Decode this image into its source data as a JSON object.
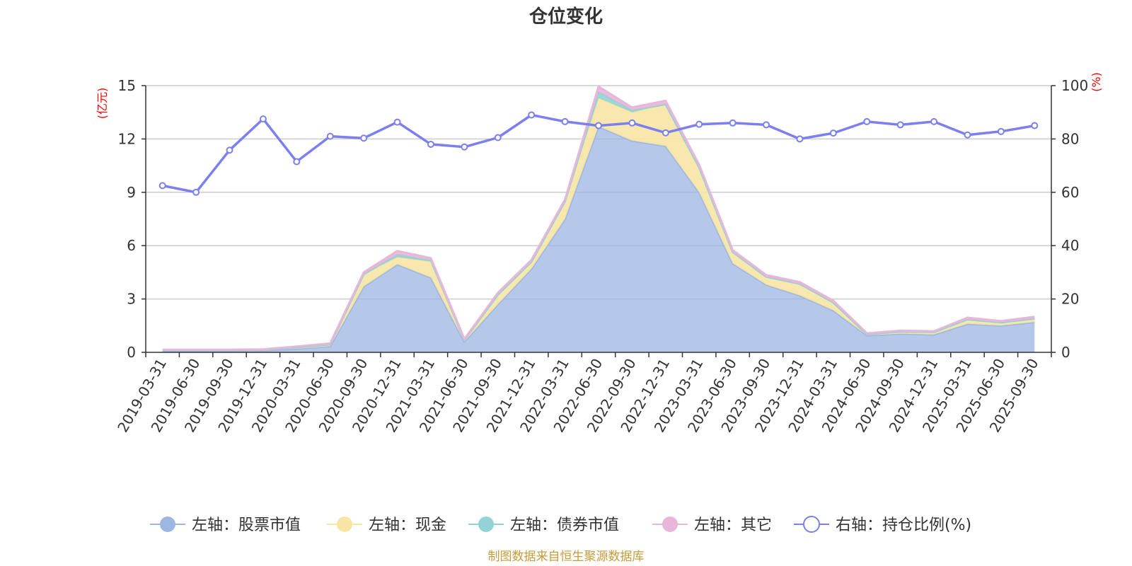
{
  "chart_data": {
    "type": "area",
    "title": "仓位变化",
    "left_axis": {
      "unit_label": "(亿元)",
      "ylim": [
        0,
        15
      ],
      "ticks": [
        "0",
        "3",
        "6",
        "9",
        "12",
        "15"
      ]
    },
    "right_axis": {
      "unit_label": "(%)",
      "ylim": [
        0,
        100
      ],
      "ticks": [
        "0",
        "20",
        "40",
        "60",
        "80",
        "100"
      ]
    },
    "categories": [
      "2019-03-31",
      "2019-06-30",
      "2019-09-30",
      "2019-12-31",
      "2020-03-31",
      "2020-06-30",
      "2020-09-30",
      "2020-12-31",
      "2021-03-31",
      "2021-06-30",
      "2021-09-30",
      "2021-12-31",
      "2022-03-31",
      "2022-06-30",
      "2022-09-30",
      "2022-12-31",
      "2023-03-31",
      "2023-06-30",
      "2023-09-30",
      "2023-12-31",
      "2024-03-31",
      "2024-06-30",
      "2024-09-30",
      "2024-12-31",
      "2025-03-31",
      "2025-06-30",
      "2025-09-30"
    ],
    "series": [
      {
        "name": "左轴：股票市值",
        "axis": "left",
        "stack": true,
        "color": "#9db6e2",
        "values": [
          0.08,
          0.08,
          0.08,
          0.1,
          0.2,
          0.35,
          3.7,
          4.95,
          4.2,
          0.6,
          2.7,
          4.7,
          7.5,
          12.7,
          11.9,
          11.6,
          9.0,
          5.0,
          3.8,
          3.2,
          2.35,
          0.95,
          1.05,
          1.0,
          1.6,
          1.5,
          1.7
        ]
      },
      {
        "name": "左轴：现金",
        "axis": "left",
        "stack": true,
        "color": "#f7e5a4",
        "values": [
          0.04,
          0.04,
          0.04,
          0.04,
          0.08,
          0.1,
          0.7,
          0.4,
          0.9,
          0.1,
          0.55,
          0.4,
          1.0,
          1.6,
          1.6,
          2.35,
          1.4,
          0.65,
          0.45,
          0.65,
          0.45,
          0.07,
          0.12,
          0.14,
          0.25,
          0.18,
          0.2
        ]
      },
      {
        "name": "左轴：债券市值",
        "axis": "left",
        "stack": true,
        "color": "#93d2d5",
        "values": [
          0,
          0,
          0,
          0,
          0,
          0,
          0,
          0.15,
          0.08,
          0,
          0,
          0,
          0,
          0.35,
          0.12,
          0,
          0,
          0,
          0,
          0,
          0,
          0,
          0,
          0,
          0,
          0,
          0
        ]
      },
      {
        "name": "左轴：其它",
        "axis": "left",
        "stack": true,
        "color": "#e7b6d9",
        "values": [
          0.03,
          0.03,
          0.03,
          0.03,
          0.05,
          0.05,
          0.1,
          0.2,
          0.12,
          0.05,
          0.1,
          0.1,
          0.1,
          0.3,
          0.15,
          0.2,
          0.15,
          0.1,
          0.1,
          0.1,
          0.1,
          0.05,
          0.05,
          0.05,
          0.1,
          0.08,
          0.1
        ]
      },
      {
        "name": "右轴：持仓比例(%)",
        "axis": "right",
        "stack": false,
        "color": "#7b7ff0",
        "values": [
          62.5,
          60,
          75.8,
          87.5,
          71.5,
          81,
          80.3,
          86.3,
          78,
          77,
          80.5,
          89,
          86.5,
          85,
          86,
          82.3,
          85.5,
          86,
          85.3,
          80,
          82.2,
          86.5,
          85.3,
          86.5,
          81.5,
          82.8,
          85
        ]
      }
    ],
    "legend_position": "bottom",
    "grid": true,
    "source_note": "制图数据来自恒生聚源数据库"
  }
}
